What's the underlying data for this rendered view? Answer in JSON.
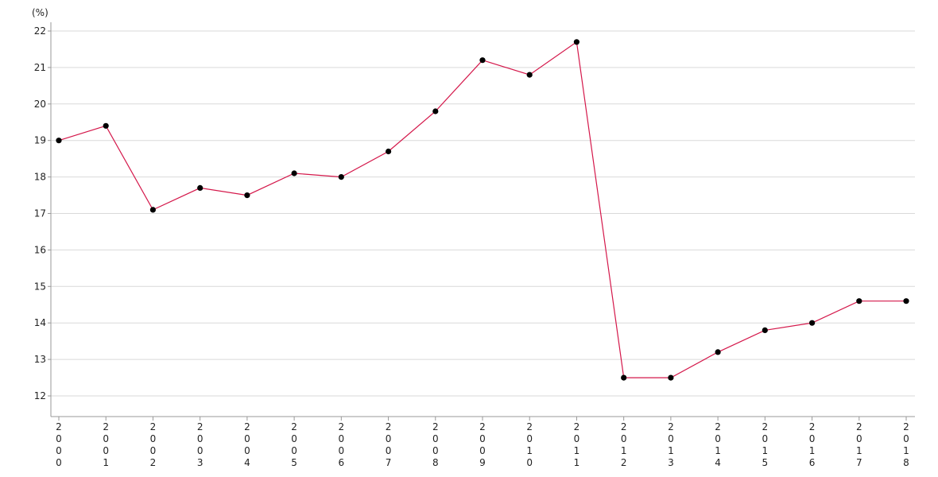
{
  "chart_data": {
    "type": "line",
    "title": "",
    "xlabel": "",
    "ylabel": "",
    "unit_label": "(%)",
    "ylim": [
      11.5,
      22.2
    ],
    "y_ticks": [
      12,
      13,
      14,
      15,
      16,
      17,
      18,
      19,
      20,
      21,
      22
    ],
    "categories": [
      "2000",
      "2001",
      "2002",
      "2003",
      "2004",
      "2005",
      "2006",
      "2007",
      "2008",
      "2009",
      "2010",
      "2011",
      "2012",
      "2013",
      "2014",
      "2015",
      "2016",
      "2017",
      "2018"
    ],
    "series": [
      {
        "values": [
          19.0,
          19.4,
          17.1,
          17.7,
          17.5,
          18.1,
          18.0,
          18.7,
          19.8,
          21.2,
          20.8,
          21.7,
          12.5,
          12.5,
          13.2,
          13.8,
          14.0,
          14.6,
          14.6
        ],
        "line_color": "#d4174a",
        "marker_color": "#000000"
      }
    ],
    "grid": true,
    "legend": "none"
  }
}
